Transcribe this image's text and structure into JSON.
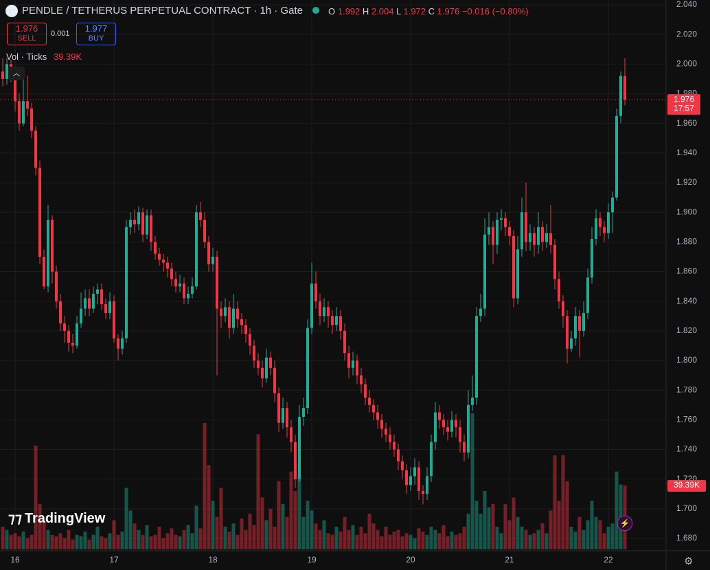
{
  "header": {
    "title": "PENDLE / TETHERUS PERPETUAL CONTRACT · 1h · Gate",
    "o": "O",
    "h": "H",
    "l": "L",
    "c": "C",
    "change": "−0.016 (−0.80%)",
    "sell_price": "1.976",
    "sell": "SELL",
    "spread": "0.001",
    "buy_price": "1.977",
    "buy": "BUY",
    "vol_title": "Vol · Ticks",
    "vol_value": "39.39K",
    "countdown": "17:57",
    "logo": "TradingView"
  },
  "chart_data": {
    "type": "candlestick",
    "up_color": "#22ab94",
    "down_color": "#f23645",
    "grid": true,
    "ylim": [
      1.68,
      2.04
    ],
    "yticks": [
      {
        "value": 2.04,
        "label": "2.040"
      },
      {
        "value": 2.02,
        "label": "2.020"
      },
      {
        "value": 2.0,
        "label": "2.000"
      },
      {
        "value": 1.98,
        "label": "1.980"
      },
      {
        "value": 1.96,
        "label": "1.960"
      },
      {
        "value": 1.94,
        "label": "1.940"
      },
      {
        "value": 1.92,
        "label": "1.920"
      },
      {
        "value": 1.9,
        "label": "1.900"
      },
      {
        "value": 1.88,
        "label": "1.880"
      },
      {
        "value": 1.86,
        "label": "1.860"
      },
      {
        "value": 1.84,
        "label": "1.840"
      },
      {
        "value": 1.82,
        "label": "1.820"
      },
      {
        "value": 1.8,
        "label": "1.800"
      },
      {
        "value": 1.78,
        "label": "1.780"
      },
      {
        "value": 1.76,
        "label": "1.760"
      },
      {
        "value": 1.74,
        "label": "1.740"
      },
      {
        "value": 1.72,
        "label": "1.720"
      },
      {
        "value": 1.7,
        "label": "1.700"
      },
      {
        "value": 1.68,
        "label": "1.680"
      }
    ],
    "volume_lim": [
      0,
      180000
    ],
    "categories": [
      null,
      null,
      null,
      "16",
      null,
      null,
      null,
      null,
      null,
      null,
      null,
      null,
      null,
      null,
      null,
      null,
      null,
      null,
      null,
      null,
      null,
      null,
      null,
      null,
      null,
      null,
      null,
      "17",
      null,
      null,
      null,
      null,
      null,
      null,
      null,
      null,
      null,
      null,
      null,
      null,
      null,
      null,
      null,
      null,
      null,
      null,
      null,
      null,
      null,
      null,
      null,
      "18",
      null,
      null,
      null,
      null,
      null,
      null,
      null,
      null,
      null,
      null,
      null,
      null,
      null,
      null,
      null,
      null,
      null,
      null,
      null,
      null,
      null,
      null,
      null,
      "19",
      null,
      null,
      null,
      null,
      null,
      null,
      null,
      null,
      null,
      null,
      null,
      null,
      null,
      null,
      null,
      null,
      null,
      null,
      null,
      null,
      null,
      null,
      null,
      "20",
      null,
      null,
      null,
      null,
      null,
      null,
      null,
      null,
      null,
      null,
      null,
      null,
      null,
      null,
      null,
      null,
      null,
      null,
      null,
      null,
      null,
      null,
      null,
      "21",
      null,
      null,
      null,
      null,
      null,
      null,
      null,
      null,
      null,
      null,
      null,
      null,
      null,
      null,
      null,
      null,
      null,
      null,
      null,
      null,
      null,
      null,
      null,
      "22",
      null,
      null,
      null,
      null
    ],
    "open": [
      1.995,
      1.99,
      2.0,
      1.995,
      1.975,
      1.96,
      1.975,
      1.97,
      1.955,
      1.93,
      1.87,
      1.85,
      1.895,
      1.86,
      1.84,
      1.825,
      1.82,
      1.812,
      1.81,
      1.825,
      1.835,
      1.842,
      1.835,
      1.845,
      1.848,
      1.838,
      1.832,
      1.84,
      1.815,
      1.808,
      1.815,
      1.89,
      1.895,
      1.892,
      1.9,
      1.885,
      1.898,
      1.88,
      1.872,
      1.868,
      1.866,
      1.862,
      1.855,
      1.85,
      1.852,
      1.842,
      1.845,
      1.85,
      1.9,
      1.895,
      1.88,
      1.865,
      1.87,
      1.835,
      1.83,
      1.836,
      1.822,
      1.835,
      1.828,
      1.824,
      1.818,
      1.81,
      1.8,
      1.795,
      1.788,
      1.802,
      1.795,
      1.778,
      1.758,
      1.768,
      1.755,
      1.745,
      1.72,
      1.762,
      1.768,
      1.822,
      1.852,
      1.84,
      1.83,
      1.836,
      1.83,
      1.824,
      1.83,
      1.82,
      1.805,
      1.795,
      1.8,
      1.79,
      1.784,
      1.775,
      1.77,
      1.765,
      1.76,
      1.754,
      1.75,
      1.745,
      1.74,
      1.732,
      1.726,
      1.716,
      1.722,
      1.728,
      1.712,
      1.71,
      1.722,
      1.745,
      1.765,
      1.76,
      1.755,
      1.752,
      1.76,
      1.755,
      1.745,
      1.738,
      1.77,
      1.775,
      1.83,
      1.835,
      1.885,
      1.89,
      1.878,
      1.895,
      1.896,
      1.89,
      1.884,
      1.842,
      1.875,
      1.9,
      1.88,
      1.886,
      1.878,
      1.89,
      1.88,
      1.886,
      1.878,
      1.855,
      1.84,
      1.83,
      1.808,
      1.815,
      1.83,
      1.82,
      1.832,
      1.856,
      1.882,
      1.896,
      1.89,
      1.886,
      1.9,
      1.91,
      1.965,
      1.992
    ],
    "high": [
      2.004,
      2.004,
      2.003,
      1.998,
      1.98,
      1.99,
      1.992,
      1.974,
      1.958,
      1.935,
      1.875,
      1.905,
      1.898,
      1.864,
      1.845,
      1.83,
      1.824,
      1.818,
      1.83,
      1.846,
      1.848,
      1.848,
      1.85,
      1.852,
      1.852,
      1.842,
      1.846,
      1.844,
      1.818,
      1.82,
      1.895,
      1.9,
      1.902,
      1.904,
      1.903,
      1.902,
      1.902,
      1.884,
      1.876,
      1.872,
      1.87,
      1.866,
      1.86,
      1.858,
      1.856,
      1.85,
      1.856,
      1.905,
      1.907,
      1.9,
      1.884,
      1.876,
      1.874,
      1.84,
      1.842,
      1.84,
      1.845,
      1.84,
      1.832,
      1.828,
      1.822,
      1.814,
      1.805,
      1.8,
      1.808,
      1.806,
      1.8,
      1.782,
      1.775,
      1.772,
      1.76,
      1.75,
      1.77,
      1.775,
      1.828,
      1.866,
      1.86,
      1.845,
      1.842,
      1.84,
      1.834,
      1.836,
      1.834,
      1.825,
      1.81,
      1.806,
      1.804,
      1.795,
      1.788,
      1.78,
      1.774,
      1.77,
      1.764,
      1.758,
      1.755,
      1.75,
      1.744,
      1.736,
      1.73,
      1.728,
      1.734,
      1.732,
      1.716,
      1.728,
      1.75,
      1.772,
      1.77,
      1.764,
      1.76,
      1.766,
      1.764,
      1.76,
      1.75,
      1.78,
      1.79,
      1.836,
      1.845,
      1.896,
      1.9,
      1.894,
      1.9,
      1.902,
      1.9,
      1.894,
      1.888,
      1.884,
      1.91,
      1.92,
      1.892,
      1.89,
      1.9,
      1.894,
      1.892,
      1.905,
      1.882,
      1.86,
      1.844,
      1.834,
      1.82,
      1.836,
      1.834,
      1.84,
      1.862,
      1.89,
      1.902,
      1.9,
      1.894,
      1.906,
      1.914,
      1.97,
      1.995,
      2.004
    ],
    "low": [
      1.985,
      1.986,
      1.988,
      1.968,
      1.955,
      1.958,
      1.965,
      1.95,
      1.925,
      1.865,
      1.848,
      1.846,
      1.852,
      1.835,
      1.82,
      1.812,
      1.806,
      1.805,
      1.808,
      1.822,
      1.83,
      1.83,
      1.832,
      1.838,
      1.834,
      1.828,
      1.828,
      1.812,
      1.8,
      1.804,
      1.812,
      1.885,
      1.886,
      1.888,
      1.88,
      1.882,
      1.874,
      1.868,
      1.864,
      1.86,
      1.856,
      1.85,
      1.846,
      1.846,
      1.838,
      1.838,
      1.842,
      1.848,
      1.89,
      1.876,
      1.86,
      1.86,
      1.79,
      1.822,
      1.826,
      1.815,
      1.818,
      1.822,
      1.818,
      1.812,
      1.804,
      1.795,
      1.79,
      1.782,
      1.785,
      1.79,
      1.772,
      1.752,
      1.754,
      1.748,
      1.738,
      1.714,
      1.718,
      1.756,
      1.764,
      1.818,
      1.835,
      1.824,
      1.826,
      1.822,
      1.818,
      1.82,
      1.814,
      1.8,
      1.788,
      1.79,
      1.784,
      1.778,
      1.77,
      1.765,
      1.76,
      1.754,
      1.748,
      1.745,
      1.74,
      1.735,
      1.726,
      1.72,
      1.71,
      1.712,
      1.716,
      1.706,
      1.703,
      1.706,
      1.718,
      1.74,
      1.754,
      1.75,
      1.746,
      1.748,
      1.748,
      1.738,
      1.732,
      1.734,
      1.766,
      1.77,
      1.826,
      1.83,
      1.878,
      1.865,
      1.872,
      1.888,
      1.884,
      1.878,
      1.836,
      1.838,
      1.87,
      1.874,
      1.874,
      1.87,
      1.872,
      1.874,
      1.876,
      1.872,
      1.848,
      1.835,
      1.822,
      1.798,
      1.806,
      1.81,
      1.802,
      1.816,
      1.828,
      1.852,
      1.878,
      1.884,
      1.88,
      1.882,
      1.886,
      1.908,
      1.96,
      1.972
    ],
    "close": [
      1.99,
      2.0,
      1.995,
      1.975,
      1.96,
      1.975,
      1.97,
      1.955,
      1.93,
      1.87,
      1.85,
      1.895,
      1.86,
      1.84,
      1.825,
      1.82,
      1.812,
      1.81,
      1.825,
      1.835,
      1.842,
      1.835,
      1.845,
      1.848,
      1.838,
      1.832,
      1.84,
      1.815,
      1.808,
      1.815,
      1.89,
      1.895,
      1.892,
      1.9,
      1.885,
      1.898,
      1.88,
      1.872,
      1.868,
      1.866,
      1.862,
      1.855,
      1.85,
      1.852,
      1.842,
      1.845,
      1.85,
      1.9,
      1.895,
      1.88,
      1.865,
      1.87,
      1.835,
      1.83,
      1.836,
      1.822,
      1.835,
      1.828,
      1.824,
      1.818,
      1.81,
      1.8,
      1.795,
      1.788,
      1.802,
      1.795,
      1.778,
      1.758,
      1.768,
      1.755,
      1.745,
      1.72,
      1.762,
      1.768,
      1.822,
      1.852,
      1.84,
      1.83,
      1.836,
      1.83,
      1.824,
      1.83,
      1.82,
      1.805,
      1.795,
      1.8,
      1.79,
      1.784,
      1.775,
      1.77,
      1.765,
      1.76,
      1.754,
      1.75,
      1.745,
      1.74,
      1.732,
      1.726,
      1.716,
      1.722,
      1.728,
      1.712,
      1.71,
      1.722,
      1.745,
      1.765,
      1.76,
      1.755,
      1.752,
      1.76,
      1.755,
      1.745,
      1.738,
      1.77,
      1.775,
      1.83,
      1.835,
      1.885,
      1.89,
      1.878,
      1.895,
      1.896,
      1.89,
      1.884,
      1.842,
      1.875,
      1.9,
      1.88,
      1.886,
      1.878,
      1.89,
      1.88,
      1.886,
      1.878,
      1.855,
      1.84,
      1.83,
      1.808,
      1.815,
      1.83,
      1.82,
      1.832,
      1.856,
      1.882,
      1.896,
      1.89,
      1.886,
      1.9,
      1.91,
      1.965,
      1.992,
      1.976
    ],
    "volume": [
      14000,
      12000,
      9000,
      10000,
      8000,
      11000,
      7000,
      9000,
      64000,
      28000,
      18000,
      12000,
      9000,
      8000,
      10000,
      7000,
      12000,
      6000,
      9000,
      8000,
      11000,
      6000,
      9000,
      14000,
      8000,
      7000,
      10000,
      18000,
      9000,
      11000,
      38000,
      24000,
      16000,
      12000,
      9000,
      15000,
      8000,
      9000,
      14000,
      7000,
      10000,
      13000,
      9000,
      8000,
      12000,
      15000,
      10000,
      27000,
      13000,
      78000,
      52000,
      30000,
      20000,
      38000,
      14000,
      11000,
      16000,
      9000,
      19000,
      12000,
      22000,
      15000,
      71000,
      32000,
      18000,
      25000,
      14000,
      42000,
      28000,
      20000,
      48000,
      36000,
      46000,
      20000,
      30000,
      24000,
      16000,
      12000,
      18000,
      10000,
      9000,
      14000,
      11000,
      20000,
      12000,
      15000,
      9000,
      14000,
      10000,
      22000,
      16000,
      12000,
      8000,
      14000,
      9000,
      11000,
      12000,
      8000,
      10000,
      9000,
      7000,
      13000,
      11000,
      9000,
      14000,
      12000,
      10000,
      15000,
      8000,
      11000,
      9000,
      10000,
      14000,
      22000,
      84000,
      30000,
      22000,
      36000,
      26000,
      28000,
      14000,
      10000,
      28000,
      18000,
      32000,
      20000,
      14000,
      12000,
      9000,
      10000,
      12000,
      16000,
      10000,
      24000,
      58000,
      30000,
      58000,
      42000,
      14000,
      11000,
      20000,
      12000,
      18000,
      30000,
      20000,
      18000,
      10000,
      14000,
      16000,
      48000,
      40000,
      39390
    ]
  }
}
